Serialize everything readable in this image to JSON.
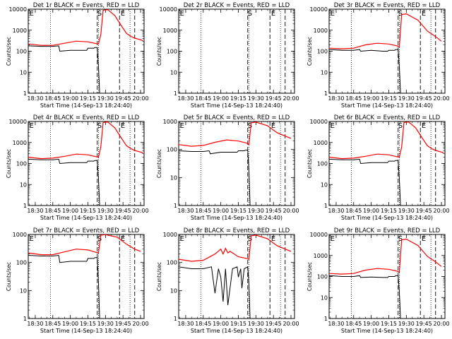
{
  "figure": {
    "xlabel": "Start Time (14-Sep-13 18:24:40)",
    "ylabel": "Counts/sec",
    "xticks": [
      "18:30",
      "18:45",
      "19:00",
      "19:15",
      "19:30",
      "19:45",
      "20:00"
    ],
    "yticks": [
      "1",
      "10",
      "100",
      "1000",
      "10000"
    ],
    "marker_labels": [
      "E",
      "S",
      "S",
      "E"
    ]
  },
  "chart_data": [
    {
      "type": "line",
      "title": "Det 1r BLACK = Events, RED = LLD",
      "ylim": [
        1,
        10000
      ],
      "yscale": "log",
      "xlim": [
        "18:24",
        "20:03"
      ],
      "series": [
        {
          "name": "Events",
          "color": "#000000",
          "x": [
            "18:24",
            "18:35",
            "18:45",
            "18:50",
            "18:51",
            "19:00",
            "19:10",
            "19:14",
            "19:15",
            "19:20",
            "19:21",
            "19:23",
            "19:24",
            "19:25"
          ],
          "values": [
            180,
            170,
            170,
            180,
            100,
            110,
            110,
            110,
            140,
            140,
            150,
            150,
            20,
            1
          ]
        },
        {
          "name": "LLD",
          "color": "#ff0000",
          "x": [
            "18:24",
            "18:35",
            "18:45",
            "18:55",
            "19:05",
            "19:15",
            "19:22",
            "19:24",
            "19:26",
            "19:28",
            "19:32",
            "19:38",
            "19:44",
            "19:48",
            "19:52",
            "19:55",
            "20:00",
            "20:02"
          ],
          "values": [
            220,
            190,
            190,
            240,
            300,
            280,
            230,
            220,
            600,
            9000,
            9500,
            5000,
            1500,
            700,
            500,
            420,
            350,
            320
          ]
        }
      ]
    },
    {
      "type": "line",
      "title": "Det 2r BLACK = Events, RED = LLD",
      "ylim": [
        1,
        10000
      ],
      "yscale": "log",
      "xlim": [
        "18:24",
        "20:03"
      ],
      "series": []
    },
    {
      "type": "line",
      "title": "Det 3r BLACK = Events, RED = LLD",
      "ylim": [
        1,
        10000
      ],
      "yscale": "log",
      "xlim": [
        "18:24",
        "20:03"
      ],
      "series": [
        {
          "name": "Events",
          "color": "#000000",
          "x": [
            "18:24",
            "18:35",
            "18:45",
            "18:50",
            "18:51",
            "19:00",
            "19:10",
            "19:14",
            "19:15",
            "19:20",
            "19:21",
            "19:23",
            "19:24",
            "19:25"
          ],
          "values": [
            120,
            110,
            110,
            120,
            100,
            110,
            100,
            100,
            110,
            110,
            120,
            120,
            20,
            1
          ]
        },
        {
          "name": "LLD",
          "color": "#ff0000",
          "x": [
            "18:24",
            "18:35",
            "18:45",
            "18:55",
            "19:05",
            "19:15",
            "19:22",
            "19:24",
            "19:26",
            "19:30",
            "19:40",
            "19:48",
            "19:55",
            "20:00"
          ],
          "values": [
            140,
            130,
            140,
            200,
            240,
            220,
            180,
            160,
            5500,
            6000,
            3000,
            900,
            500,
            300
          ]
        }
      ]
    },
    {
      "type": "line",
      "title": "Det 4r BLACK = Events, RED = LLD",
      "ylim": [
        1,
        10000
      ],
      "yscale": "log",
      "xlim": [
        "18:24",
        "20:03"
      ],
      "series": [
        {
          "name": "Events",
          "color": "#000000",
          "x": [
            "18:24",
            "18:35",
            "18:45",
            "18:50",
            "18:51",
            "19:00",
            "19:10",
            "19:14",
            "19:15",
            "19:20",
            "19:21",
            "19:23",
            "19:24",
            "19:25"
          ],
          "values": [
            160,
            150,
            150,
            160,
            100,
            110,
            110,
            110,
            130,
            130,
            140,
            140,
            20,
            1
          ]
        },
        {
          "name": "LLD",
          "color": "#ff0000",
          "x": [
            "18:24",
            "18:35",
            "18:45",
            "18:55",
            "19:05",
            "19:15",
            "19:22",
            "19:24",
            "19:26",
            "19:28",
            "19:32",
            "19:38",
            "19:44",
            "19:48",
            "19:52",
            "19:55",
            "20:00",
            "20:02"
          ],
          "values": [
            200,
            170,
            180,
            220,
            280,
            260,
            210,
            200,
            600,
            9000,
            9500,
            5000,
            1500,
            700,
            500,
            420,
            350,
            320
          ]
        }
      ]
    },
    {
      "type": "line",
      "title": "Det 5r BLACK = Events, RED = LLD",
      "ylim": [
        1,
        1000
      ],
      "yscale": "log",
      "xlim": [
        "18:24",
        "20:03"
      ],
      "series": [
        {
          "name": "Events",
          "color": "#000000",
          "x": [
            "18:24",
            "18:35",
            "18:45",
            "18:50",
            "18:51",
            "19:00",
            "19:10",
            "19:14",
            "19:15",
            "19:20",
            "19:21",
            "19:23",
            "19:24",
            "19:25"
          ],
          "values": [
            90,
            85,
            85,
            90,
            70,
            80,
            80,
            80,
            90,
            90,
            95,
            95,
            20,
            1
          ]
        },
        {
          "name": "LLD",
          "color": "#ff0000",
          "x": [
            "18:24",
            "18:35",
            "18:45",
            "18:55",
            "19:05",
            "19:15",
            "19:22",
            "19:24",
            "19:26",
            "19:30",
            "19:40",
            "19:48",
            "19:55",
            "20:00"
          ],
          "values": [
            150,
            130,
            140,
            180,
            220,
            200,
            170,
            150,
            900,
            950,
            700,
            400,
            300,
            250
          ]
        }
      ]
    },
    {
      "type": "line",
      "title": "Det 6r BLACK = Events, RED = LLD",
      "ylim": [
        1,
        10000
      ],
      "yscale": "log",
      "xlim": [
        "18:24",
        "20:03"
      ],
      "series": [
        {
          "name": "Events",
          "color": "#000000",
          "x": [
            "18:24",
            "18:35",
            "18:45",
            "18:50",
            "18:51",
            "19:00",
            "19:10",
            "19:14",
            "19:15",
            "19:20",
            "19:21",
            "19:23",
            "19:24",
            "19:25"
          ],
          "values": [
            160,
            150,
            150,
            160,
            100,
            110,
            110,
            110,
            130,
            130,
            140,
            140,
            20,
            1
          ]
        },
        {
          "name": "LLD",
          "color": "#ff0000",
          "x": [
            "18:24",
            "18:35",
            "18:45",
            "18:55",
            "19:05",
            "19:15",
            "19:22",
            "19:24",
            "19:26",
            "19:28",
            "19:32",
            "19:38",
            "19:44",
            "19:48",
            "19:52",
            "19:55",
            "20:00",
            "20:02"
          ],
          "values": [
            200,
            170,
            180,
            220,
            280,
            260,
            210,
            200,
            600,
            9000,
            9500,
            5000,
            1500,
            700,
            500,
            420,
            350,
            320
          ]
        }
      ]
    },
    {
      "type": "line",
      "title": "Det 7r BLACK = Events, RED = LLD",
      "ylim": [
        1,
        1000
      ],
      "yscale": "log",
      "xlim": [
        "18:24",
        "20:03"
      ],
      "series": [
        {
          "name": "Events",
          "color": "#000000",
          "x": [
            "18:24",
            "18:35",
            "18:45",
            "18:50",
            "18:51",
            "19:00",
            "19:10",
            "19:14",
            "19:15",
            "19:20",
            "19:21",
            "19:23",
            "19:24",
            "19:25"
          ],
          "values": [
            180,
            170,
            170,
            180,
            100,
            110,
            110,
            110,
            140,
            140,
            150,
            150,
            20,
            1
          ]
        },
        {
          "name": "LLD",
          "color": "#ff0000",
          "x": [
            "18:24",
            "18:35",
            "18:45",
            "18:55",
            "19:05",
            "19:15",
            "19:22",
            "19:24",
            "19:26",
            "19:30",
            "19:40",
            "19:48",
            "19:55",
            "20:00"
          ],
          "values": [
            220,
            190,
            190,
            240,
            300,
            280,
            230,
            220,
            950,
            980,
            800,
            450,
            300,
            250
          ]
        }
      ]
    },
    {
      "type": "line",
      "title": "Det 8r BLACK = Events, RED = LLD",
      "ylim": [
        1,
        1000
      ],
      "yscale": "log",
      "xlim": [
        "18:24",
        "20:03"
      ],
      "series": [
        {
          "name": "Events",
          "color": "#000000",
          "x": [
            "18:24",
            "18:35",
            "18:45",
            "18:52",
            "18:55",
            "18:58",
            "19:00",
            "19:02",
            "19:04",
            "19:06",
            "19:10",
            "19:14",
            "19:15",
            "19:17",
            "19:18",
            "19:20",
            "19:23",
            "19:24",
            "19:25"
          ],
          "values": [
            70,
            60,
            60,
            70,
            8,
            60,
            30,
            4,
            60,
            3,
            60,
            70,
            30,
            60,
            12,
            60,
            70,
            20,
            1
          ]
        },
        {
          "name": "LLD",
          "color": "#ff0000",
          "x": [
            "18:24",
            "18:35",
            "18:45",
            "18:55",
            "19:00",
            "19:02",
            "19:04",
            "19:06",
            "19:08",
            "19:15",
            "19:22",
            "19:24",
            "19:26",
            "19:30",
            "19:40",
            "19:48",
            "19:55",
            "20:00"
          ],
          "values": [
            130,
            110,
            120,
            200,
            300,
            200,
            320,
            220,
            250,
            160,
            140,
            130,
            900,
            950,
            700,
            400,
            300,
            250
          ]
        }
      ]
    },
    {
      "type": "line",
      "title": "Det 9r BLACK = Events, RED = LLD",
      "ylim": [
        1,
        10000
      ],
      "yscale": "log",
      "xlim": [
        "18:24",
        "20:03"
      ],
      "series": [
        {
          "name": "Events",
          "color": "#000000",
          "x": [
            "18:24",
            "18:35",
            "18:45",
            "18:50",
            "18:51",
            "19:00",
            "19:10",
            "19:14",
            "19:15",
            "19:20",
            "19:21",
            "19:23",
            "19:24",
            "19:25"
          ],
          "values": [
            110,
            100,
            100,
            110,
            90,
            95,
            90,
            90,
            100,
            100,
            110,
            110,
            20,
            1
          ]
        },
        {
          "name": "LLD",
          "color": "#ff0000",
          "x": [
            "18:24",
            "18:35",
            "18:45",
            "18:55",
            "19:05",
            "19:15",
            "19:22",
            "19:24",
            "19:26",
            "19:30",
            "19:40",
            "19:48",
            "19:55",
            "20:00"
          ],
          "values": [
            140,
            130,
            140,
            200,
            240,
            220,
            180,
            160,
            5500,
            6000,
            3000,
            900,
            500,
            300
          ]
        }
      ]
    }
  ]
}
